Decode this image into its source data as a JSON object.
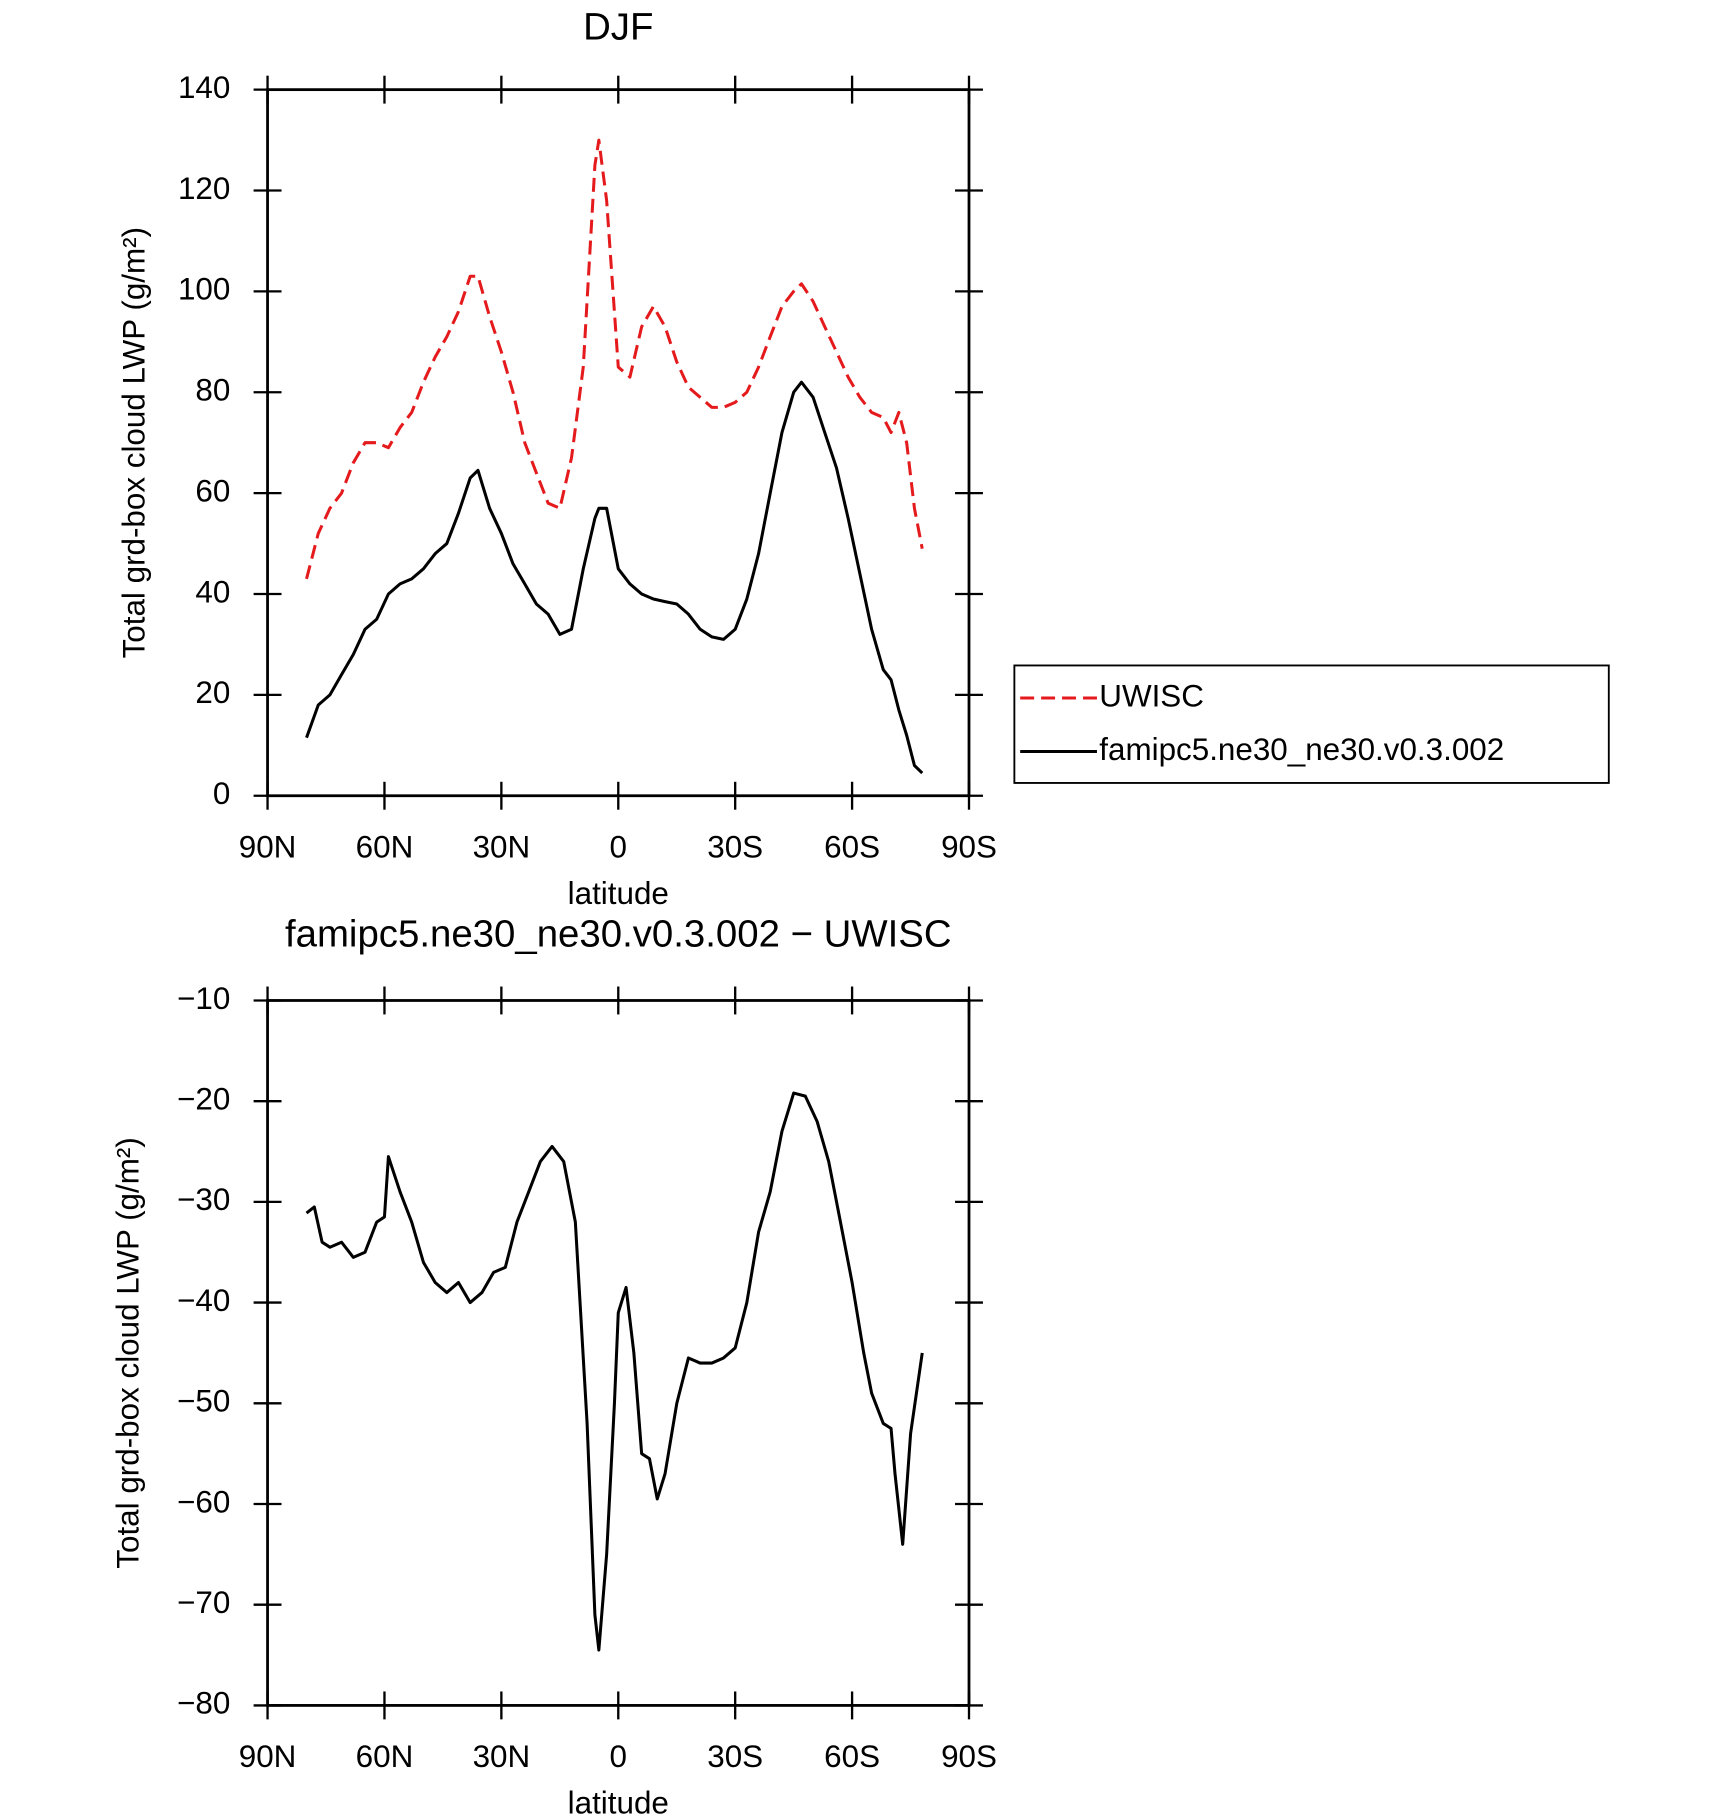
{
  "chart_data": [
    {
      "type": "line",
      "title": "DJF",
      "xlabel": "latitude",
      "ylabel": "Total grd-box cloud LWP (g/m²)",
      "xlim": [
        90,
        -90
      ],
      "xticks": [
        {
          "value": 90,
          "label": "90N"
        },
        {
          "value": 60,
          "label": "60N"
        },
        {
          "value": 30,
          "label": "30N"
        },
        0,
        {
          "value": -30,
          "label": "30S"
        },
        {
          "value": -60,
          "label": "60S"
        },
        {
          "value": -90,
          "label": "90S"
        }
      ],
      "ylim": [
        0,
        140
      ],
      "yticks": [
        0,
        20,
        40,
        60,
        80,
        100,
        120,
        140
      ],
      "legend": "right",
      "x": [
        80,
        77,
        74,
        71,
        68,
        65,
        62,
        59,
        56,
        53,
        50,
        47,
        44,
        41,
        38,
        36,
        33,
        30,
        27,
        24,
        21,
        18,
        15,
        12,
        9,
        6,
        5,
        3,
        0,
        -3,
        -6,
        -9,
        -12,
        -15,
        -18,
        -21,
        -24,
        -27,
        -30,
        -33,
        -36,
        -39,
        -42,
        -45,
        -47,
        -50,
        -53,
        -56,
        -59,
        -62,
        -65,
        -68,
        -70,
        -72,
        -74,
        -76,
        -78
      ],
      "series": [
        {
          "name": "UWISC",
          "color": "#e41a1c",
          "dashed": true,
          "values": [
            43,
            52,
            57,
            60,
            66,
            70,
            70,
            69,
            73,
            76,
            82,
            87,
            91,
            96,
            103,
            103,
            95,
            88,
            80,
            70,
            64,
            58,
            57,
            67,
            85,
            125,
            130,
            118,
            85,
            83,
            93,
            97,
            93,
            86,
            81,
            79,
            77,
            77,
            78,
            80,
            85,
            91,
            97,
            100,
            101.5,
            98,
            93,
            88,
            83,
            79,
            76,
            75,
            72,
            76,
            70,
            57,
            49
          ]
        },
        {
          "name": "famipc5.ne30_ne30.v0.3.002",
          "color": "#000000",
          "dashed": false,
          "values": [
            11.5,
            18,
            20,
            24,
            28,
            33,
            35,
            40,
            42,
            43,
            45,
            48,
            50,
            56,
            63,
            64.5,
            57,
            52,
            46,
            42,
            38,
            36,
            32,
            33,
            45,
            55,
            57,
            57,
            45,
            42,
            40,
            39,
            38.5,
            38,
            36,
            33,
            31.5,
            31,
            33,
            39,
            48,
            60,
            72,
            80,
            82,
            79,
            72,
            65,
            55,
            44,
            33,
            25,
            23,
            17,
            12,
            6,
            4.5
          ]
        }
      ]
    },
    {
      "type": "line",
      "title": "famipc5.ne30_ne30.v0.3.002 − UWISC",
      "xlabel": "latitude",
      "ylabel": "Total grd-box cloud LWP (g/m²)",
      "xlim": [
        90,
        -90
      ],
      "xticks": [
        {
          "value": 90,
          "label": "90N"
        },
        {
          "value": 60,
          "label": "60N"
        },
        {
          "value": 30,
          "label": "30N"
        },
        0,
        {
          "value": -30,
          "label": "30S"
        },
        {
          "value": -60,
          "label": "60S"
        },
        {
          "value": -90,
          "label": "90S"
        }
      ],
      "ylim": [
        -80,
        -10
      ],
      "yticks": [
        {
          "value": -80,
          "label": "−80"
        },
        {
          "value": -70,
          "label": "−70"
        },
        {
          "value": -60,
          "label": "−60"
        },
        {
          "value": -50,
          "label": "−50"
        },
        {
          "value": -40,
          "label": "−40"
        },
        {
          "value": -30,
          "label": "−30"
        },
        {
          "value": -20,
          "label": "−20"
        },
        {
          "value": -10,
          "label": "−10"
        }
      ],
      "x": [
        80,
        78,
        76,
        74,
        71,
        68,
        65,
        62,
        60,
        59,
        56,
        53,
        50,
        47,
        44,
        41,
        38,
        35,
        32,
        29,
        26,
        23,
        20,
        17,
        14,
        11,
        8,
        6,
        5,
        3,
        1,
        0,
        -2,
        -4,
        -6,
        -8,
        -10,
        -12,
        -15,
        -18,
        -21,
        -24,
        -27,
        -30,
        -33,
        -36,
        -39,
        -42,
        -45,
        -48,
        -51,
        -54,
        -57,
        -60,
        -63,
        -65,
        -68,
        -70,
        -71,
        -73,
        -75,
        -78
      ],
      "series": [
        {
          "color": "#000000",
          "dashed": false,
          "values": [
            -31.1,
            -30.5,
            -34,
            -34.5,
            -34,
            -35.5,
            -35,
            -32,
            -31.5,
            -25.5,
            -29,
            -32,
            -36,
            -38,
            -39,
            -38,
            -40,
            -39,
            -37,
            -36.5,
            -32,
            -29,
            -26,
            -24.5,
            -26,
            -32,
            -52,
            -71,
            -74.5,
            -65,
            -50,
            -41,
            -38.5,
            -45,
            -55,
            -55.5,
            -59.5,
            -57,
            -50,
            -45.5,
            -46,
            -46,
            -45.5,
            -44.5,
            -40,
            -33,
            -29,
            -23,
            -19.2,
            -19.5,
            -22,
            -26,
            -32,
            -38,
            -45,
            -49,
            -52,
            -52.5,
            -57,
            -64,
            -53,
            -45
          ]
        }
      ]
    }
  ]
}
